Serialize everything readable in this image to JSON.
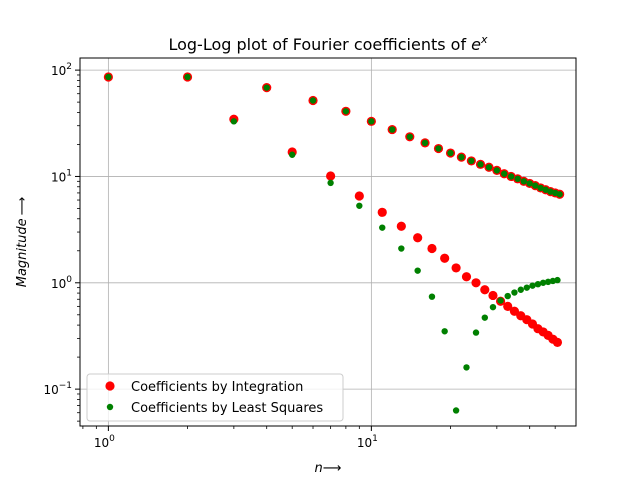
{
  "chart_data": {
    "type": "scatter",
    "title": "Log-Log plot of Fourier coefficients of ",
    "title_exponent_base": "e",
    "title_exponent": "x",
    "xlabel": "n",
    "xlabel_arrow": "⟶",
    "ylabel": "Magnitude",
    "ylabel_arrow": "⟶",
    "x_scale": "log",
    "y_scale": "log",
    "xlim": [
      0.78,
      60
    ],
    "ylim": [
      0.045,
      130
    ],
    "x_ticks": [
      {
        "value": 1,
        "base": "10",
        "exp": "0"
      },
      {
        "value": 10,
        "base": "10",
        "exp": "1"
      }
    ],
    "y_ticks": [
      {
        "value": 0.1,
        "base": "10",
        "exp": "−1"
      },
      {
        "value": 1,
        "base": "10",
        "exp": "0"
      },
      {
        "value": 10,
        "base": "10",
        "exp": "1"
      },
      {
        "value": 100,
        "base": "10",
        "exp": "2"
      }
    ],
    "grid": true,
    "legend_position": "lower-left",
    "series": [
      {
        "name": "Coefficients by Integration",
        "color": "#ff0000",
        "marker_size": "large",
        "points": [
          [
            1,
            86.2
          ],
          [
            2,
            86.2
          ],
          [
            3,
            34.5
          ],
          [
            4,
            68.4
          ],
          [
            5,
            17.0
          ],
          [
            6,
            51.8
          ],
          [
            7,
            10.1
          ],
          [
            8,
            41.0
          ],
          [
            9,
            6.55
          ],
          [
            10,
            33.0
          ],
          [
            11,
            4.6
          ],
          [
            12,
            27.6
          ],
          [
            13,
            3.4
          ],
          [
            14,
            23.6
          ],
          [
            15,
            2.65
          ],
          [
            16,
            20.7
          ],
          [
            17,
            2.1
          ],
          [
            18,
            18.3
          ],
          [
            19,
            1.7
          ],
          [
            20,
            16.6
          ],
          [
            21,
            1.38
          ],
          [
            22,
            15.2
          ],
          [
            23,
            1.14
          ],
          [
            24,
            14.0
          ],
          [
            25,
            1.0
          ],
          [
            26,
            13.0
          ],
          [
            27,
            0.86
          ],
          [
            28,
            12.2
          ],
          [
            29,
            0.76
          ],
          [
            30,
            11.4
          ],
          [
            31,
            0.67
          ],
          [
            32,
            10.6
          ],
          [
            33,
            0.6
          ],
          [
            34,
            10.0
          ],
          [
            35,
            0.54
          ],
          [
            36,
            9.5
          ],
          [
            37,
            0.49
          ],
          [
            38,
            9.0
          ],
          [
            39,
            0.45
          ],
          [
            40,
            8.6
          ],
          [
            41,
            0.41
          ],
          [
            42,
            8.2
          ],
          [
            43,
            0.37
          ],
          [
            44,
            7.8
          ],
          [
            45,
            0.345
          ],
          [
            46,
            7.5
          ],
          [
            47,
            0.32
          ],
          [
            48,
            7.2
          ],
          [
            49,
            0.295
          ],
          [
            50,
            7.0
          ],
          [
            51,
            0.275
          ],
          [
            52,
            6.8
          ]
        ]
      },
      {
        "name": "Coefficients by Least Squares",
        "color": "#008000",
        "marker_size": "small",
        "points": [
          [
            1,
            86.2
          ],
          [
            2,
            86.2
          ],
          [
            3,
            33.0
          ],
          [
            4,
            68.4
          ],
          [
            5,
            16.0
          ],
          [
            6,
            51.8
          ],
          [
            7,
            8.7
          ],
          [
            8,
            41.0
          ],
          [
            9,
            5.3
          ],
          [
            10,
            33.0
          ],
          [
            11,
            3.3
          ],
          [
            12,
            27.6
          ],
          [
            13,
            2.1
          ],
          [
            14,
            23.6
          ],
          [
            15,
            1.3
          ],
          [
            16,
            20.7
          ],
          [
            17,
            0.74
          ],
          [
            18,
            18.3
          ],
          [
            19,
            0.35
          ],
          [
            20,
            16.6
          ],
          [
            21,
            0.063
          ],
          [
            22,
            15.2
          ],
          [
            23,
            0.16
          ],
          [
            24,
            14.0
          ],
          [
            25,
            0.34
          ],
          [
            26,
            13.0
          ],
          [
            27,
            0.47
          ],
          [
            28,
            12.2
          ],
          [
            29,
            0.59
          ],
          [
            30,
            11.4
          ],
          [
            31,
            0.68
          ],
          [
            32,
            10.6
          ],
          [
            33,
            0.75
          ],
          [
            34,
            10.0
          ],
          [
            35,
            0.81
          ],
          [
            36,
            9.5
          ],
          [
            37,
            0.86
          ],
          [
            38,
            9.0
          ],
          [
            39,
            0.9
          ],
          [
            40,
            8.6
          ],
          [
            41,
            0.94
          ],
          [
            42,
            8.2
          ],
          [
            43,
            0.97
          ],
          [
            44,
            7.8
          ],
          [
            45,
            1.0
          ],
          [
            46,
            7.5
          ],
          [
            47,
            1.02
          ],
          [
            48,
            7.2
          ],
          [
            49,
            1.04
          ],
          [
            50,
            7.0
          ],
          [
            51,
            1.06
          ],
          [
            52,
            6.8
          ]
        ]
      }
    ]
  }
}
